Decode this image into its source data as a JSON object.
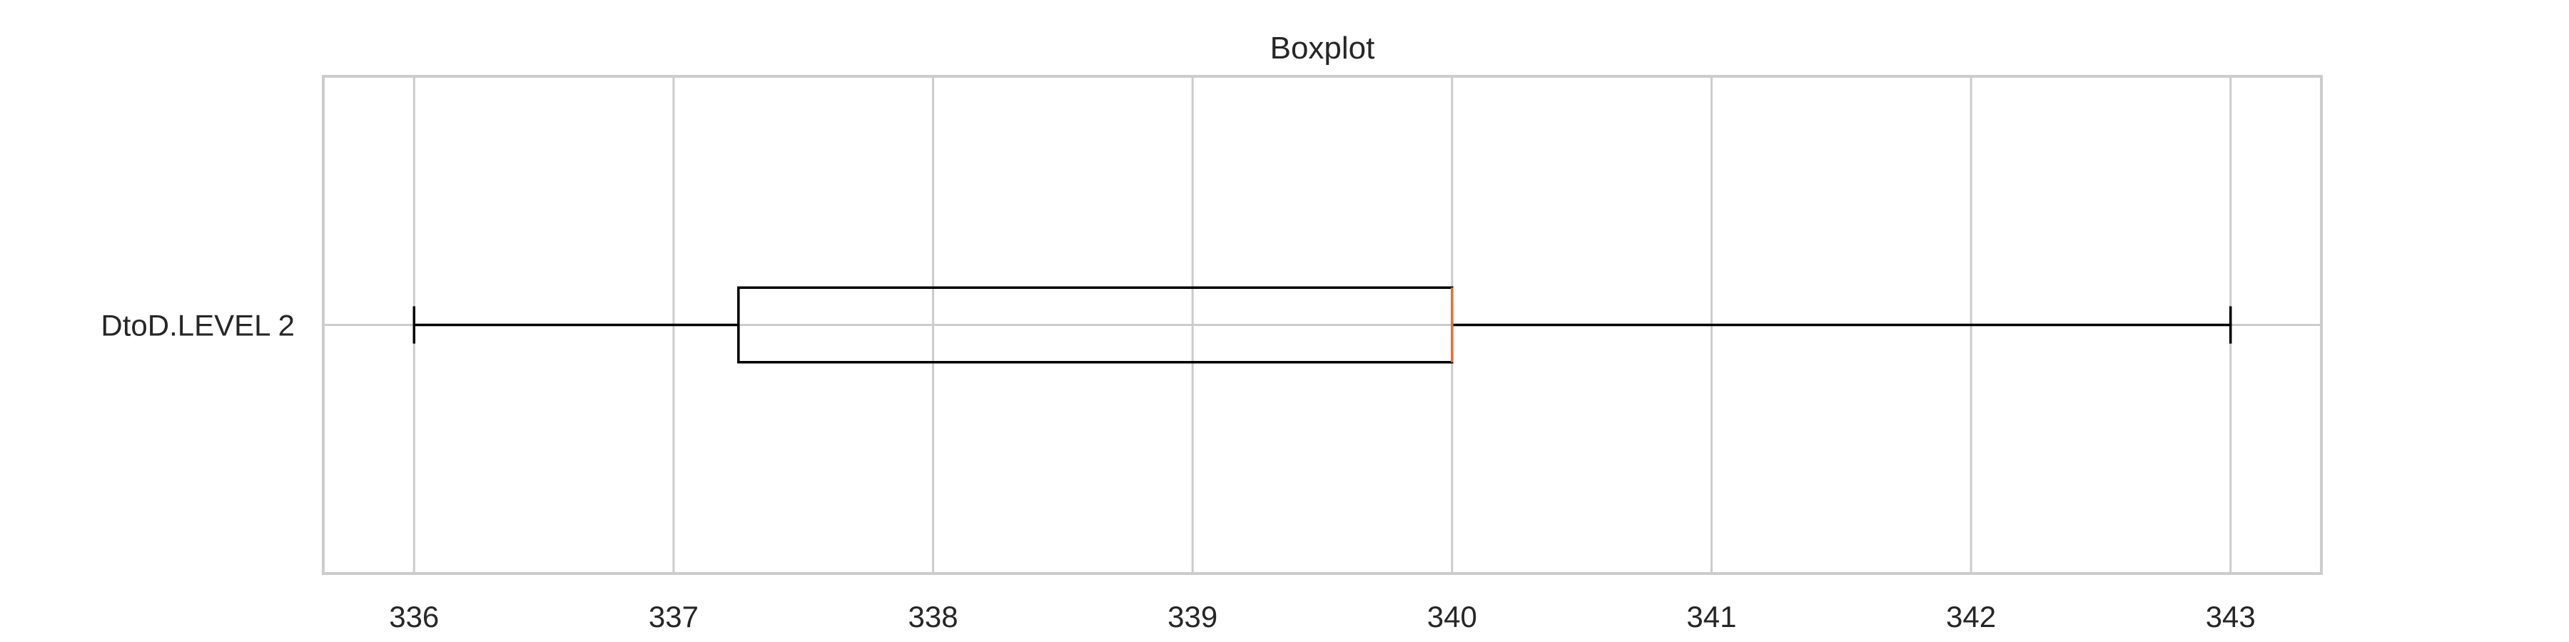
{
  "chart_data": {
    "type": "boxplot",
    "orientation": "horizontal",
    "title": "Boxplot",
    "xlabel": "",
    "ylabel": "",
    "xlim": [
      335.65,
      343.35
    ],
    "x_ticks": [
      336,
      337,
      338,
      339,
      340,
      341,
      342,
      343
    ],
    "x_tick_labels": [
      "336",
      "337",
      "338",
      "339",
      "340",
      "341",
      "342",
      "343"
    ],
    "grid": true,
    "series": [
      {
        "name": "DtoD.LEVEL 2",
        "whisker_low": 336,
        "q1": 337.25,
        "median": 340,
        "q3": 340,
        "whisker_high": 343
      }
    ],
    "colors": {
      "grid": "#cccccc",
      "frame": "#cccccc",
      "box": "#000000",
      "median": "#e8743b",
      "text": "#262626"
    }
  }
}
